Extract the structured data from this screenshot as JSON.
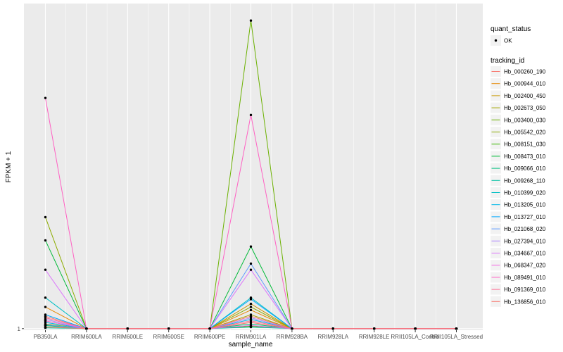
{
  "chart_data": {
    "type": "line",
    "xlabel": "sample_name",
    "ylabel": "FPKM + 1",
    "x": [
      "PB350LA",
      "RRIM600LA",
      "RRIM600LE",
      "RRIM600SE",
      "RRIM600PE",
      "RRIM901LA",
      "RRIM928BA",
      "RRIM928LA",
      "RRIM928LE",
      "RRII105LA_Control",
      "RRII105LA_Stressed"
    ],
    "y_ticks": [
      {
        "label": "1",
        "value": 1
      }
    ],
    "ylim": [
      0.9,
      22
    ],
    "grid": true,
    "legend": {
      "placement": "right",
      "point_title": "quant_status",
      "point_entries": [
        "OK"
      ],
      "line_title": "tracking_id"
    },
    "series": [
      {
        "name": "Hb_000260_190",
        "color": "#F8766D",
        "values": [
          1.8,
          1,
          1,
          1,
          1,
          1.4,
          1,
          1,
          1,
          1,
          1
        ]
      },
      {
        "name": "Hb_000944_010",
        "color": "#E58700",
        "values": [
          2.4,
          1,
          1,
          1,
          1,
          2.2,
          1,
          1,
          1,
          1,
          1
        ]
      },
      {
        "name": "Hb_002400_450",
        "color": "#C99800",
        "values": [
          1.5,
          1,
          1,
          1,
          1,
          2.6,
          1,
          1,
          1,
          1,
          1
        ]
      },
      {
        "name": "Hb_002673_050",
        "color": "#A3A500",
        "values": [
          1.3,
          1,
          1,
          1,
          1,
          1.9,
          1,
          1,
          1,
          1,
          1
        ]
      },
      {
        "name": "Hb_003400_030",
        "color": "#6BB100",
        "values": [
          1.2,
          1,
          1,
          1,
          1,
          20.9,
          1,
          1,
          1,
          1,
          1
        ]
      },
      {
        "name": "Hb_005542_020",
        "color": "#8CAB00",
        "values": [
          8.2,
          1,
          1,
          1,
          1,
          2.4,
          1,
          1,
          1,
          1,
          1
        ]
      },
      {
        "name": "Hb_008151_030",
        "color": "#39B600",
        "values": [
          1.1,
          1,
          1,
          1,
          1,
          1.15,
          1,
          1,
          1,
          1,
          1
        ]
      },
      {
        "name": "Hb_008473_010",
        "color": "#00BA38",
        "values": [
          6.7,
          1,
          1,
          1,
          1,
          6.3,
          1,
          1,
          1,
          1,
          1
        ]
      },
      {
        "name": "Hb_009066_010",
        "color": "#00BF7D",
        "values": [
          1.2,
          1,
          1,
          1,
          1,
          1.3,
          1,
          1,
          1,
          1,
          1
        ]
      },
      {
        "name": "Hb_009268_110",
        "color": "#00C1A3",
        "values": [
          1.05,
          1,
          1,
          1,
          1,
          1.1,
          1,
          1,
          1,
          1,
          1
        ]
      },
      {
        "name": "Hb_010399_020",
        "color": "#00BFC4",
        "values": [
          3,
          1,
          1,
          1,
          1,
          3,
          1,
          1,
          1,
          1,
          1
        ]
      },
      {
        "name": "Hb_013205_010",
        "color": "#00B8E7",
        "values": [
          1.4,
          1,
          1,
          1,
          1,
          1.6,
          1,
          1,
          1,
          1,
          1
        ]
      },
      {
        "name": "Hb_013727_010",
        "color": "#00A9FF",
        "values": [
          1.9,
          1,
          1,
          1,
          1,
          2.9,
          1,
          1,
          1,
          1,
          1
        ]
      },
      {
        "name": "Hb_021068_020",
        "color": "#619CFF",
        "values": [
          1.25,
          1,
          1,
          1,
          1,
          5.2,
          1,
          1,
          1,
          1,
          1
        ]
      },
      {
        "name": "Hb_027394_010",
        "color": "#AE87FF",
        "values": [
          1.6,
          1,
          1,
          1,
          1,
          1.7,
          1,
          1,
          1,
          1,
          1
        ]
      },
      {
        "name": "Hb_034667_010",
        "color": "#DB72FB",
        "values": [
          4.8,
          1,
          1,
          1,
          1,
          4.8,
          1,
          1,
          1,
          1,
          1
        ]
      },
      {
        "name": "Hb_068347_020",
        "color": "#F564E3",
        "values": [
          1.5,
          1,
          1,
          1,
          1,
          1.2,
          1,
          1,
          1,
          1,
          1
        ]
      },
      {
        "name": "Hb_089491_010",
        "color": "#FF61C3",
        "values": [
          15.9,
          1,
          1,
          1,
          1,
          14.8,
          1,
          1,
          1,
          1,
          1
        ]
      },
      {
        "name": "Hb_091369_010",
        "color": "#FF6C91",
        "values": [
          1.7,
          1,
          1,
          1,
          1,
          1.5,
          1,
          1,
          1,
          1,
          1
        ]
      },
      {
        "name": "Hb_136856_010",
        "color": "#F8766D",
        "values": [
          1.1,
          1,
          1,
          1,
          1,
          1.8,
          1,
          1,
          1,
          1,
          1
        ]
      }
    ]
  }
}
